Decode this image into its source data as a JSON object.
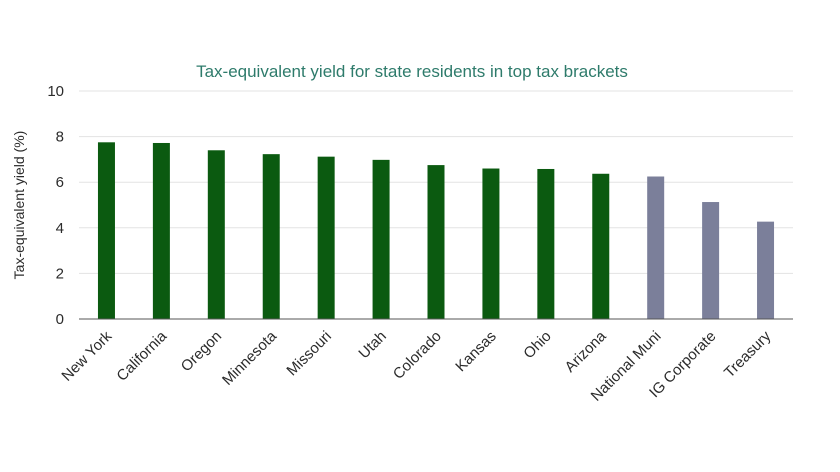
{
  "chart_data": {
    "type": "bar",
    "title": "Tax-equivalent yield for state residents in top tax brackets",
    "xlabel": "",
    "ylabel": "Tax-equivalent yield (%)",
    "ylim": [
      0,
      10
    ],
    "yticks": [
      0,
      2,
      4,
      6,
      8,
      10
    ],
    "grid": true,
    "categories": [
      "New York",
      "California",
      "Oregon",
      "Minnesota",
      "Missouri",
      "Utah",
      "Colorado",
      "Kansas",
      "Ohio",
      "Arizona",
      "National Muni",
      "IG Corporate",
      "Treasury"
    ],
    "values": [
      7.75,
      7.72,
      7.4,
      7.23,
      7.12,
      6.98,
      6.75,
      6.6,
      6.58,
      6.37,
      6.25,
      5.13,
      4.27
    ],
    "bar_colors": [
      "#0b5a10",
      "#0b5a10",
      "#0b5a10",
      "#0b5a10",
      "#0b5a10",
      "#0b5a10",
      "#0b5a10",
      "#0b5a10",
      "#0b5a10",
      "#0b5a10",
      "#7b7f9a",
      "#7b7f9a",
      "#7b7f9a"
    ]
  }
}
